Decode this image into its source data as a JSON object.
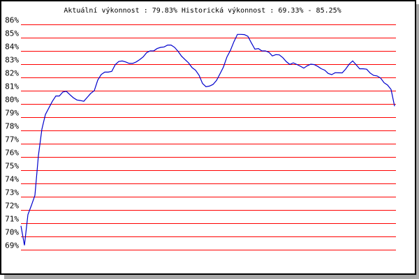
{
  "chart_data": {
    "type": "line",
    "title": "Aktuální výkonnost : 79.83%  Historická výkonnost : 69.33% - 85.25%",
    "xlabel": "",
    "ylabel": "",
    "ylim": [
      69,
      86
    ],
    "y_ticks": [
      "69%",
      "70%",
      "71%",
      "72%",
      "73%",
      "74%",
      "75%",
      "76%",
      "77%",
      "78%",
      "79%",
      "80%",
      "81%",
      "82%",
      "83%",
      "84%",
      "85%",
      "86%"
    ],
    "grid": true,
    "colors": {
      "grid": "#ff0000",
      "line": "#0000cc",
      "frame": "#000000",
      "shadow": "#a8a8a8"
    },
    "series": [
      {
        "values": [
          70.8,
          69.33,
          71.65,
          72.35,
          73.1,
          76.1,
          78.1,
          79.2,
          79.7,
          80.2,
          80.6,
          80.6,
          80.9,
          80.95,
          80.7,
          80.47,
          80.3,
          80.26,
          80.2,
          80.5,
          80.8,
          81.0,
          81.8,
          82.22,
          82.4,
          82.4,
          82.45,
          82.96,
          83.2,
          83.24,
          83.17,
          83.06,
          83.06,
          83.17,
          83.34,
          83.55,
          83.87,
          84.0,
          84.0,
          84.18,
          84.27,
          84.3,
          84.44,
          84.44,
          84.27,
          83.97,
          83.6,
          83.35,
          83.1,
          82.74,
          82.54,
          82.17,
          81.54,
          81.3,
          81.35,
          81.47,
          81.77,
          82.27,
          82.79,
          83.55,
          84.05,
          84.7,
          85.25,
          85.25,
          85.23,
          85.1,
          84.6,
          84.13,
          84.18,
          84.0,
          84.0,
          83.9,
          83.62,
          83.72,
          83.7,
          83.49,
          83.19,
          82.98,
          83.1,
          82.98,
          82.85,
          82.7,
          82.88,
          83.0,
          82.97,
          82.83,
          82.66,
          82.55,
          82.3,
          82.21,
          82.36,
          82.35,
          82.34,
          82.63,
          83.0,
          83.25,
          82.95,
          82.65,
          82.65,
          82.62,
          82.33,
          82.15,
          82.11,
          81.95,
          81.6,
          81.42,
          81.09,
          79.83
        ]
      }
    ]
  }
}
